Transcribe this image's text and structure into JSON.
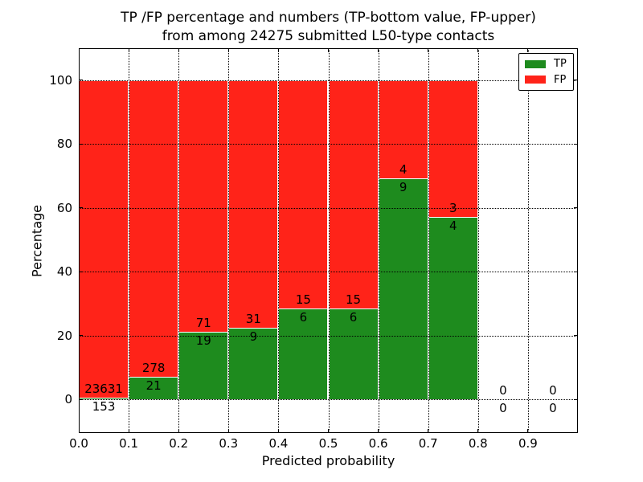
{
  "title": {
    "line1": "TP /FP percentage and numbers (TP-bottom value, FP-upper)",
    "line2": "from among 24275 submitted L50-type contacts"
  },
  "chart_data": {
    "type": "bar",
    "stacked": true,
    "title": "TP /FP percentage and numbers (TP-bottom value, FP-upper)\nfrom among 24275 submitted L50-type contacts",
    "total_submitted": 24275,
    "xlabel": "Predicted probability",
    "ylabel": "Percentage",
    "xlim": [
      0.0,
      1.0
    ],
    "ylim": [
      -10.5,
      110
    ],
    "x_ticks": [
      "0.0",
      "0.1",
      "0.2",
      "0.3",
      "0.4",
      "0.5",
      "0.6",
      "0.7",
      "0.8",
      "0.9"
    ],
    "y_ticks": [
      "0",
      "20",
      "40",
      "60",
      "80",
      "100"
    ],
    "grid": "dotted",
    "bin_width": 0.1,
    "bin_starts": [
      0.0,
      0.1,
      0.2,
      0.3,
      0.4,
      0.5,
      0.6,
      0.7,
      0.8,
      0.9
    ],
    "series": [
      {
        "name": "TP",
        "color": "#1e8b1e",
        "counts": [
          153,
          21,
          19,
          9,
          6,
          6,
          9,
          4,
          0,
          0
        ]
      },
      {
        "name": "FP",
        "color": "#ff2319",
        "counts": [
          23631,
          278,
          71,
          31,
          15,
          15,
          4,
          3,
          0,
          0
        ]
      }
    ],
    "tp_percent": [
      0.64,
      7.02,
      21.11,
      22.5,
      28.57,
      28.57,
      69.23,
      57.14,
      0,
      0
    ],
    "legend": {
      "position": "upper right",
      "entries": [
        "TP",
        "FP"
      ]
    },
    "axis_color": "#000000",
    "background": "#ffffff"
  }
}
